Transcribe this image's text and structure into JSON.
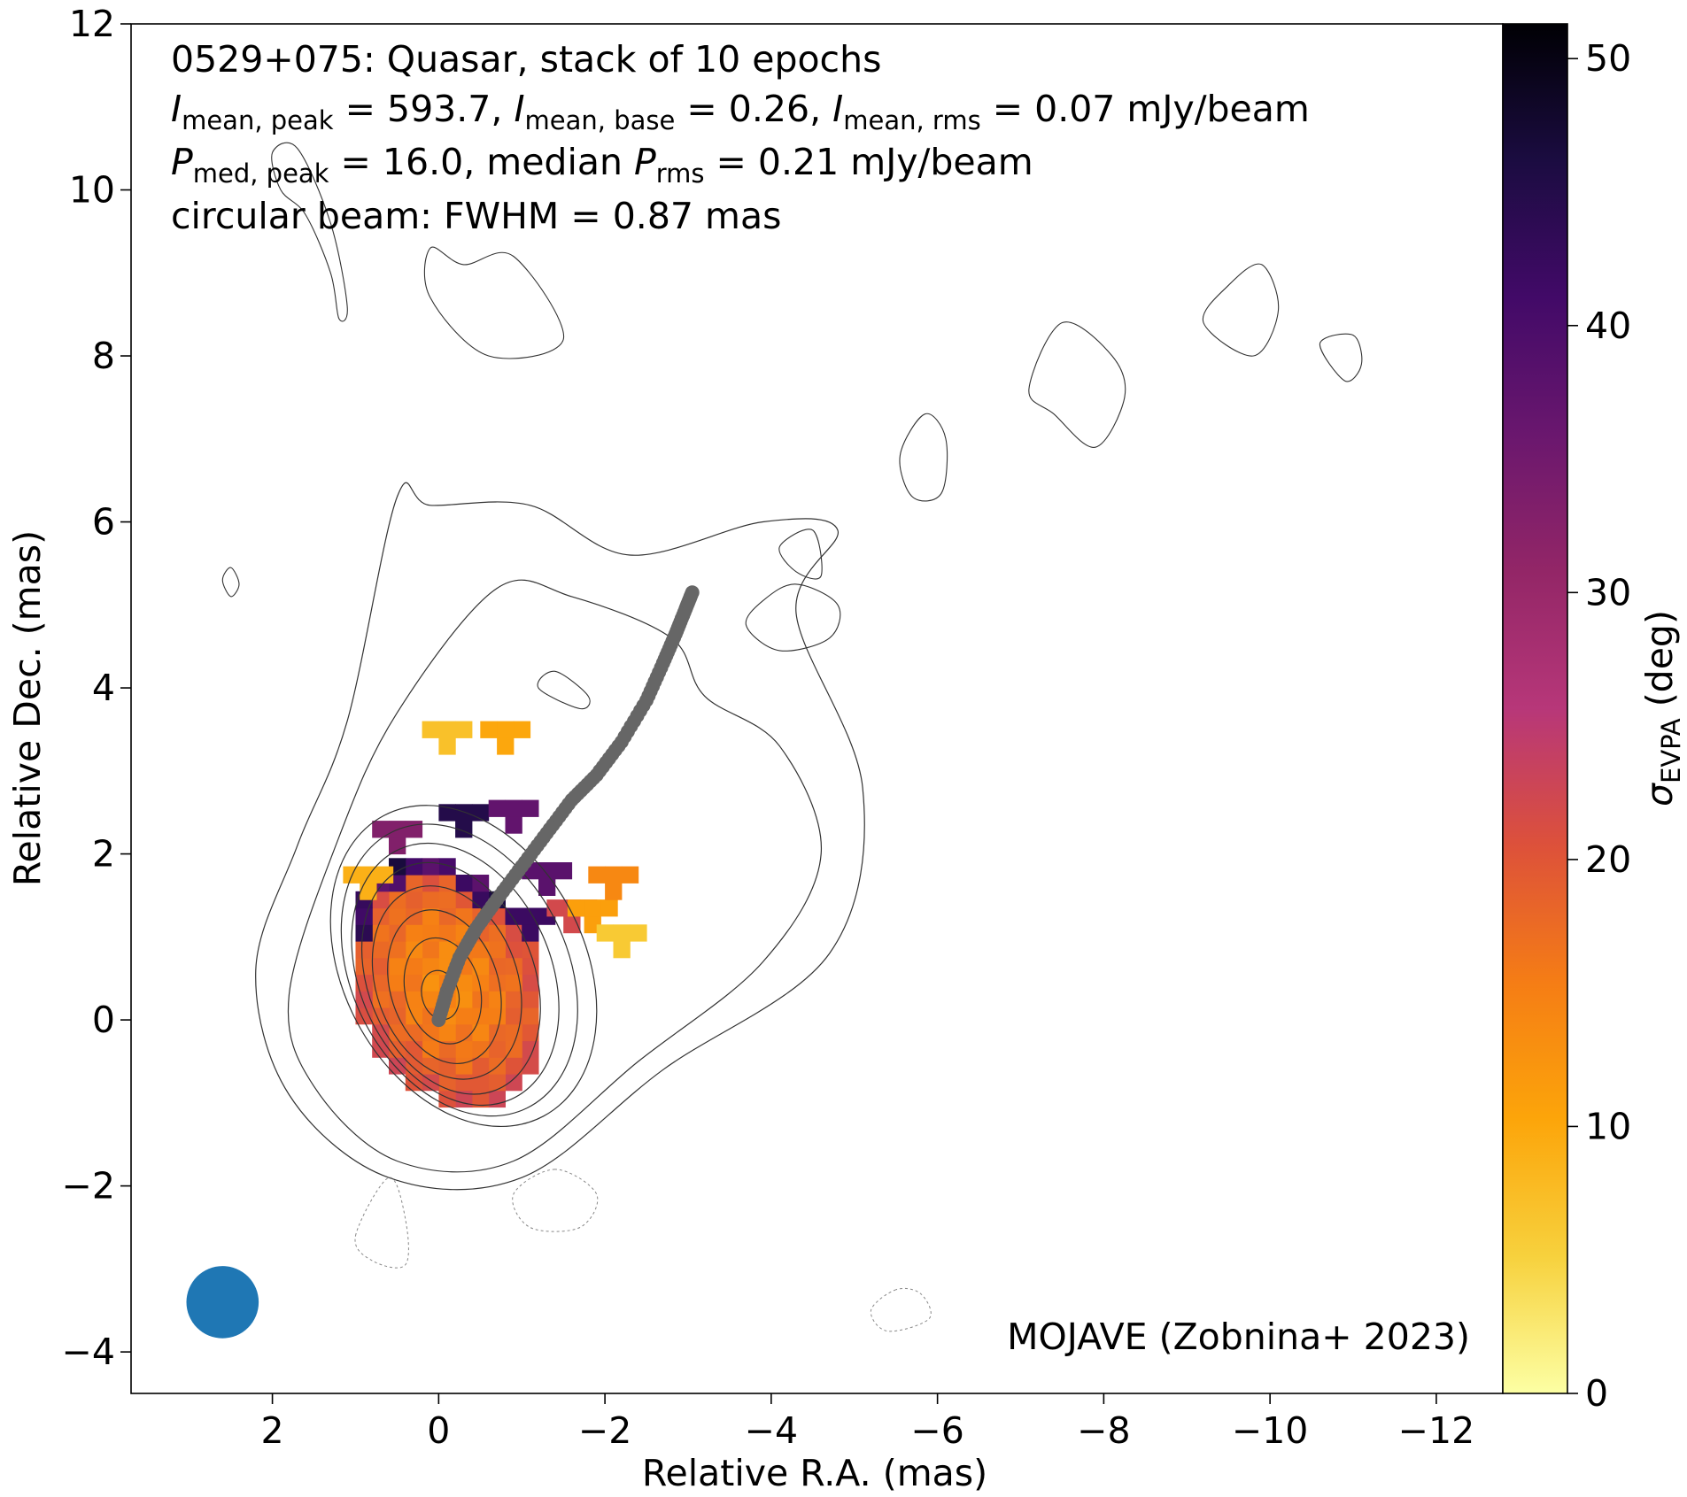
{
  "chart_data": {
    "type": "heatmap",
    "header_line1": "0529+075: Quasar, stack of 10 epochs",
    "stats_line1": {
      "i_peak_sym": "I",
      "i_peak_sub": "mean, peak",
      "i_peak_val": " = 593.7, ",
      "i_base_sym": "I",
      "i_base_sub": "mean, base",
      "i_base_val": " = 0.26, ",
      "i_rms_sym": "I",
      "i_rms_sub": "mean, rms",
      "i_rms_val": " = 0.07 mJy/beam"
    },
    "stats_line2": {
      "p_peak_sym": "P",
      "p_peak_sub": "med, peak",
      "p_peak_val": " = 16.0, median ",
      "p_rms_sym": "P",
      "p_rms_sub": "rms",
      "p_rms_val": " = 0.21 mJy/beam"
    },
    "header_line4": "circular beam: FWHM = 0.87 mas",
    "credit": "MOJAVE (Zobnina+ 2023)",
    "xlabel": "Relative R.A. (mas)",
    "ylabel": "Relative Dec. (mas)",
    "colorbar_sym": "σ",
    "colorbar_sub": "EVPA",
    "colorbar_unit": " (deg)",
    "xlim": [
      3.7,
      -12.8
    ],
    "ylim": [
      -4.5,
      12
    ],
    "x_ticks": [
      2,
      0,
      -2,
      -4,
      -6,
      -8,
      -10,
      -12
    ],
    "x_tick_labels": [
      "2",
      "0",
      "−2",
      "−4",
      "−6",
      "−8",
      "−10",
      "−12"
    ],
    "y_ticks": [
      12,
      10,
      8,
      6,
      4,
      2,
      0,
      -2,
      -4
    ],
    "y_tick_labels": [
      "12",
      "10",
      "8",
      "6",
      "4",
      "2",
      "0",
      "−2",
      "−4"
    ],
    "colorbar_range": [
      0,
      51.3
    ],
    "colorbar_ticks": [
      0,
      10,
      20,
      30,
      40,
      50
    ],
    "colorbar_tick_labels": [
      "0",
      "10",
      "20",
      "30",
      "40",
      "50"
    ],
    "colormap": "inferno_r",
    "colormap_stops": [
      "#fcffa4",
      "#f7d13d",
      "#fca50a",
      "#f57d15",
      "#dd513a",
      "#b73779",
      "#932667",
      "#6a176e",
      "#420a68",
      "#1b0c41",
      "#000004"
    ],
    "beam": {
      "x": 2.6,
      "y": -3.4,
      "fwhm": 0.87,
      "color": "#1f77b4"
    },
    "core": {
      "x": 0,
      "y": 0
    },
    "ridgeline": {
      "color": "#666666",
      "points": [
        [
          0,
          0
        ],
        [
          -0.1,
          0.35
        ],
        [
          -0.25,
          0.75
        ],
        [
          -0.45,
          1.1
        ],
        [
          -0.7,
          1.45
        ],
        [
          -1.0,
          1.85
        ],
        [
          -1.3,
          2.25
        ],
        [
          -1.6,
          2.65
        ],
        [
          -1.9,
          2.95
        ],
        [
          -2.2,
          3.35
        ],
        [
          -2.5,
          3.85
        ],
        [
          -2.7,
          4.3
        ],
        [
          -2.85,
          4.65
        ],
        [
          -2.97,
          4.95
        ],
        [
          -3.05,
          5.15
        ]
      ]
    },
    "polarization_region": {
      "center": [
        -0.1,
        0.45
      ],
      "semi_axes": [
        1.1,
        1.55
      ],
      "rotation_deg": -25,
      "value_at_core": 14,
      "value_at_edge": 22
    },
    "polarization_patches": [
      {
        "x": -0.1,
        "y": 3.3,
        "value": 7
      },
      {
        "x": -0.8,
        "y": 3.3,
        "value": 10
      },
      {
        "x": -0.3,
        "y": 2.3,
        "value": 45
      },
      {
        "x": -0.9,
        "y": 2.35,
        "value": 37
      },
      {
        "x": -1.3,
        "y": 1.6,
        "value": 38
      },
      {
        "x": -1.1,
        "y": 1.05,
        "value": 42
      },
      {
        "x": -1.6,
        "y": 1.15,
        "value": 22
      },
      {
        "x": -1.85,
        "y": 1.15,
        "value": 11
      },
      {
        "x": -2.1,
        "y": 1.55,
        "value": 14
      },
      {
        "x": -2.2,
        "y": 0.85,
        "value": 6
      },
      {
        "x": 0.85,
        "y": 1.55,
        "value": 9
      },
      {
        "x": 0.5,
        "y": 2.1,
        "value": 33
      }
    ],
    "contours": {
      "color": "#333333",
      "core_levels": [
        {
          "cx": -0.02,
          "cy": 0.3,
          "rx": 0.22,
          "ry": 0.3,
          "rot": -15
        },
        {
          "cx": -0.05,
          "cy": 0.35,
          "rx": 0.45,
          "ry": 0.65,
          "rot": -15
        },
        {
          "cx": -0.07,
          "cy": 0.4,
          "rx": 0.65,
          "ry": 0.95,
          "rot": -18
        },
        {
          "cx": -0.1,
          "cy": 0.45,
          "rx": 0.85,
          "ry": 1.2,
          "rot": -20
        },
        {
          "cx": -0.15,
          "cy": 0.5,
          "rx": 1.0,
          "ry": 1.45,
          "rot": -22
        },
        {
          "cx": -0.2,
          "cy": 0.55,
          "rx": 1.15,
          "ry": 1.65,
          "rot": -24
        },
        {
          "cx": -0.25,
          "cy": 0.6,
          "rx": 1.3,
          "ry": 1.85,
          "rot": -26
        },
        {
          "cx": -0.3,
          "cy": 0.65,
          "rx": 1.45,
          "ry": 2.05,
          "rot": -28
        }
      ],
      "outer_levels": [
        [
          [
            1.8,
            0.3
          ],
          [
            1.5,
            -0.8
          ],
          [
            0.5,
            -1.7
          ],
          [
            -0.9,
            -1.7
          ],
          [
            -2.4,
            -0.5
          ],
          [
            -3.9,
            0.7
          ],
          [
            -4.6,
            2.0
          ],
          [
            -4.1,
            3.3
          ],
          [
            -3.2,
            3.9
          ],
          [
            -2.8,
            4.6
          ],
          [
            -1.6,
            5.1
          ],
          [
            -0.7,
            5.2
          ],
          [
            0.5,
            3.7
          ],
          [
            1.2,
            2.2
          ]
        ],
        [
          [
            2.2,
            0.6
          ],
          [
            1.8,
            -0.9
          ],
          [
            0.6,
            -1.9
          ],
          [
            -1.0,
            -1.9
          ],
          [
            -2.7,
            -0.6
          ],
          [
            -4.7,
            0.8
          ],
          [
            -5.1,
            2.8
          ],
          [
            -4.3,
            4.9
          ],
          [
            -4.8,
            5.9
          ],
          [
            -3.9,
            6.0
          ],
          [
            -2.3,
            5.6
          ],
          [
            -1.1,
            6.2
          ],
          [
            0.1,
            6.2
          ],
          [
            0.5,
            6.3
          ],
          [
            1.1,
            3.6
          ],
          [
            1.7,
            2.1
          ]
        ]
      ],
      "islands": [
        [
          [
            1.7,
            10.5
          ],
          [
            1.3,
            9.6
          ],
          [
            1.1,
            8.6
          ],
          [
            1.2,
            8.45
          ],
          [
            1.3,
            9.0
          ],
          [
            1.6,
            9.7
          ],
          [
            1.9,
            10.0
          ],
          [
            2.0,
            10.45
          ]
        ],
        [
          [
            0.1,
            9.3
          ],
          [
            -0.3,
            9.1
          ],
          [
            -0.9,
            9.2
          ],
          [
            -1.5,
            8.2
          ],
          [
            -0.6,
            8.0
          ],
          [
            0.1,
            8.7
          ]
        ],
        [
          [
            -5.85,
            7.3
          ],
          [
            -6.1,
            7.0
          ],
          [
            -6.05,
            6.35
          ],
          [
            -5.7,
            6.3
          ],
          [
            -5.55,
            6.8
          ]
        ],
        [
          [
            -7.5,
            8.4
          ],
          [
            -8.1,
            8.0
          ],
          [
            -8.25,
            7.5
          ],
          [
            -7.9,
            6.9
          ],
          [
            -7.4,
            7.3
          ],
          [
            -7.1,
            7.6
          ]
        ],
        [
          [
            -9.5,
            8.85
          ],
          [
            -9.2,
            8.4
          ],
          [
            -9.8,
            8.0
          ],
          [
            -10.1,
            8.55
          ],
          [
            -9.9,
            9.1
          ]
        ],
        [
          [
            -10.6,
            8.15
          ],
          [
            -10.9,
            7.7
          ],
          [
            -11.1,
            7.9
          ],
          [
            -11.0,
            8.25
          ]
        ],
        [
          [
            -4.1,
            5.7
          ],
          [
            -4.5,
            5.9
          ],
          [
            -4.6,
            5.35
          ],
          [
            -4.3,
            5.4
          ]
        ],
        [
          [
            -3.9,
            5.05
          ],
          [
            -3.7,
            4.75
          ],
          [
            -4.1,
            4.45
          ],
          [
            -4.7,
            4.6
          ],
          [
            -4.8,
            5.0
          ],
          [
            -4.3,
            5.25
          ]
        ],
        [
          [
            -1.4,
            4.2
          ],
          [
            -1.2,
            4.0
          ],
          [
            -1.7,
            3.75
          ],
          [
            -1.8,
            3.9
          ]
        ],
        [
          [
            2.5,
            5.45
          ],
          [
            2.4,
            5.25
          ],
          [
            2.5,
            5.1
          ],
          [
            2.6,
            5.3
          ]
        ]
      ],
      "negative_islands": [
        [
          [
            1.0,
            -2.6
          ],
          [
            0.6,
            -1.9
          ],
          [
            0.4,
            -2.4
          ],
          [
            0.4,
            -2.95
          ],
          [
            0.8,
            -2.9
          ]
        ],
        [
          [
            -1.4,
            -1.8
          ],
          [
            -0.9,
            -2.1
          ],
          [
            -1.1,
            -2.5
          ],
          [
            -1.7,
            -2.5
          ],
          [
            -1.9,
            -2.1
          ]
        ],
        [
          [
            -5.5,
            -3.25
          ],
          [
            -5.2,
            -3.5
          ],
          [
            -5.4,
            -3.75
          ],
          [
            -5.9,
            -3.6
          ],
          [
            -5.8,
            -3.3
          ]
        ]
      ]
    }
  }
}
